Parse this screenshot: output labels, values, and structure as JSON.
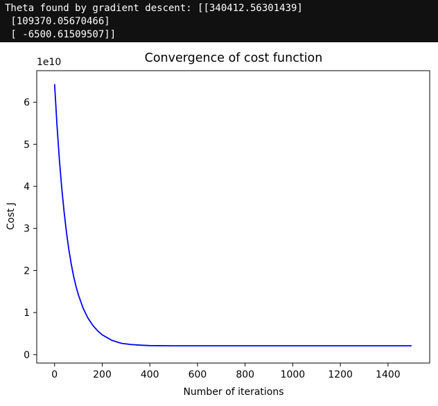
{
  "console": {
    "lines": [
      "Theta found by gradient descent: [[340412.56301439]",
      " [109370.05670466]",
      " [ -6500.61509507]]"
    ]
  },
  "chart_data": {
    "type": "line",
    "title": "Convergence of cost function",
    "xlabel": "Number of iterations",
    "ylabel": "Cost J",
    "y_offset_label": "1e10",
    "xlim": [
      -75,
      1575
    ],
    "ylim": [
      -0.2,
      6.75
    ],
    "x_ticks": [
      0,
      200,
      400,
      600,
      800,
      1000,
      1200,
      1400
    ],
    "y_ticks": [
      0,
      1,
      2,
      3,
      4,
      5,
      6
    ],
    "grid": false,
    "series": [
      {
        "color": "#0000ff",
        "x": [
          0,
          10,
          20,
          30,
          40,
          50,
          60,
          70,
          80,
          90,
          100,
          120,
          140,
          160,
          180,
          200,
          240,
          280,
          320,
          360,
          400,
          500,
          600,
          800,
          1000,
          1200,
          1400,
          1499
        ],
        "values": [
          6.43,
          5.46,
          4.64,
          3.96,
          3.39,
          2.9,
          2.49,
          2.15,
          1.86,
          1.62,
          1.42,
          1.1,
          0.87,
          0.7,
          0.57,
          0.47,
          0.34,
          0.27,
          0.24,
          0.225,
          0.215,
          0.21,
          0.21,
          0.21,
          0.21,
          0.21,
          0.21,
          0.21
        ]
      }
    ]
  }
}
